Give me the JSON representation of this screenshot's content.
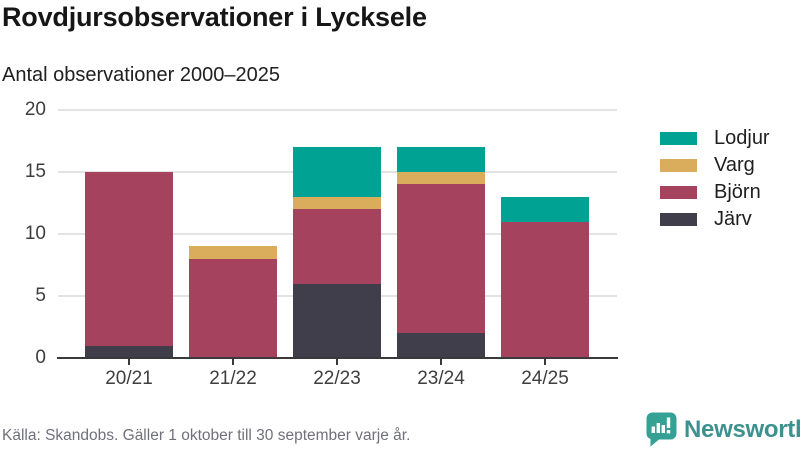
{
  "header": {
    "title": "Rovdjursobservationer i Lycksele",
    "subtitle": "Antal observationer 2000–2025"
  },
  "chart_data": {
    "type": "bar",
    "stacked": true,
    "title": "Rovdjursobservationer i Lycksele",
    "subtitle": "Antal observationer 2000–2025",
    "categories": [
      "20/21",
      "21/22",
      "22/23",
      "23/24",
      "24/25"
    ],
    "series": [
      {
        "name": "Järv",
        "color": "#413E4C",
        "values": [
          1,
          0,
          6,
          2,
          0
        ]
      },
      {
        "name": "Björn",
        "color": "#A5435F",
        "values": [
          14,
          8,
          6,
          12,
          11
        ]
      },
      {
        "name": "Varg",
        "color": "#D9AD5C",
        "values": [
          0,
          1,
          1,
          1,
          0
        ]
      },
      {
        "name": "Lodjur",
        "color": "#00A294",
        "values": [
          0,
          0,
          4,
          2,
          2
        ]
      }
    ],
    "totals": [
      15,
      9,
      17,
      17,
      13
    ],
    "ylim": [
      0,
      20
    ],
    "y_ticks": [
      0,
      5,
      10,
      15,
      20
    ],
    "grid": true,
    "legend_position": "right",
    "legend_order": [
      "Lodjur",
      "Varg",
      "Björn",
      "Järv"
    ]
  },
  "footer": {
    "source": "Källa: Skandobs. Gäller 1 oktober till 30 september varje år.",
    "logo_text": "Newsworthy"
  },
  "colors": {
    "teal": "#00A294",
    "gold": "#D9AD5C",
    "maroon": "#A5435F",
    "dark": "#413E4C",
    "axis": "#3A3A3A",
    "grid": "#E3E3E3",
    "muted_text": "#70707A",
    "logo_teal": "#3E918E"
  }
}
